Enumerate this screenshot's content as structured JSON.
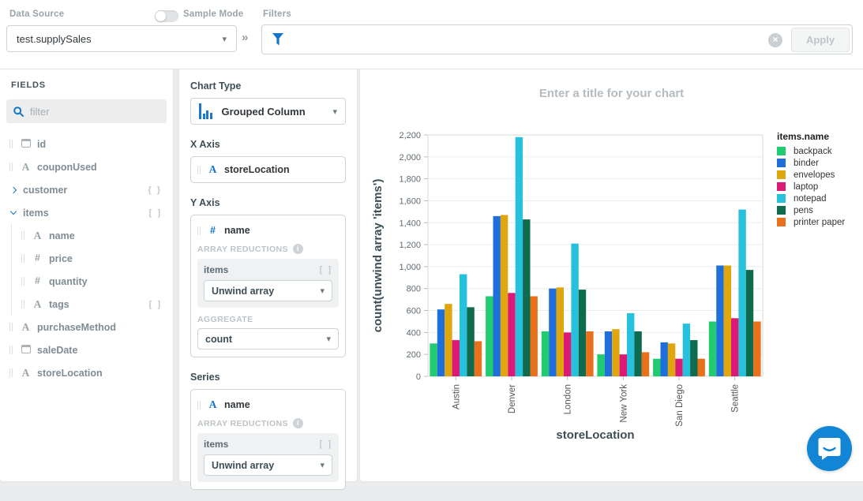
{
  "topbar": {
    "data_source_label": "Data Source",
    "data_source_value": "test.supplySales",
    "sample_mode_label": "Sample Mode",
    "sample_mode_on": false,
    "filters_label": "Filters",
    "apply_label": "Apply"
  },
  "fields": {
    "title": "FIELDS",
    "filter_placeholder": "filter",
    "items": [
      {
        "name": "id",
        "type": "date",
        "depth": 0
      },
      {
        "name": "couponUsed",
        "type": "string",
        "depth": 0
      },
      {
        "name": "customer",
        "type": "object",
        "badge": "{ }",
        "state": "collapsed",
        "depth": 0
      },
      {
        "name": "items",
        "type": "array",
        "badge": "[ ]",
        "state": "expanded",
        "depth": 0
      },
      {
        "name": "name",
        "type": "string",
        "depth": 1
      },
      {
        "name": "price",
        "type": "number",
        "depth": 1
      },
      {
        "name": "quantity",
        "type": "number",
        "depth": 1
      },
      {
        "name": "tags",
        "type": "string",
        "badge": "[ ]",
        "depth": 1
      },
      {
        "name": "purchaseMethod",
        "type": "string",
        "depth": 0
      },
      {
        "name": "saleDate",
        "type": "date",
        "depth": 0
      },
      {
        "name": "storeLocation",
        "type": "string",
        "depth": 0
      }
    ]
  },
  "encoding": {
    "chart_type_label": "Chart Type",
    "chart_type_value": "Grouped Column",
    "x_axis": {
      "label": "X Axis",
      "field": "storeLocation",
      "field_type": "string"
    },
    "y_axis": {
      "label": "Y Axis",
      "field": "name",
      "field_type": "number",
      "array_reductions_label": "ARRAY REDUCTIONS",
      "reduction_field": "items",
      "reduction_badge": "[ ]",
      "reduction_value": "Unwind array",
      "aggregate_label": "AGGREGATE",
      "aggregate_value": "count"
    },
    "series": {
      "label": "Series",
      "field": "name",
      "field_type": "string",
      "array_reductions_label": "ARRAY REDUCTIONS",
      "reduction_field": "items",
      "reduction_badge": "[ ]",
      "reduction_value": "Unwind array"
    }
  },
  "chart_data": {
    "type": "bar",
    "title_placeholder": "Enter a title for your chart",
    "categories": [
      "Austin",
      "Denver",
      "London",
      "New York",
      "San Diego",
      "Seattle"
    ],
    "series": [
      {
        "name": "backpack",
        "color": "#21CB6F",
        "values": [
          300,
          730,
          410,
          200,
          160,
          500
        ]
      },
      {
        "name": "binder",
        "color": "#1E6FD9",
        "values": [
          610,
          1460,
          800,
          410,
          310,
          1010
        ]
      },
      {
        "name": "envelopes",
        "color": "#DFA70D",
        "values": [
          660,
          1470,
          810,
          430,
          300,
          1010
        ]
      },
      {
        "name": "laptop",
        "color": "#DB1A77",
        "values": [
          330,
          760,
          400,
          200,
          160,
          530
        ]
      },
      {
        "name": "notepad",
        "color": "#27C1DD",
        "values": [
          930,
          2180,
          1210,
          575,
          480,
          1520
        ]
      },
      {
        "name": "pens",
        "color": "#0E6B4E",
        "values": [
          630,
          1430,
          790,
          410,
          330,
          970
        ]
      },
      {
        "name": "printer paper",
        "color": "#E9711C",
        "values": [
          320,
          730,
          410,
          220,
          160,
          500
        ]
      }
    ],
    "xlabel": "storeLocation",
    "ylabel": "count(unwind array 'items')",
    "legend_title": "items.name",
    "legend_position": "right",
    "ylim": [
      0,
      2200
    ],
    "ytick_step": 200,
    "grid": true
  },
  "colors": {
    "accent_blue": "#1375cc",
    "axis_text": "#5f6a70",
    "axis_title": "#3d4e57",
    "chat_bubble": "#1285d5"
  }
}
